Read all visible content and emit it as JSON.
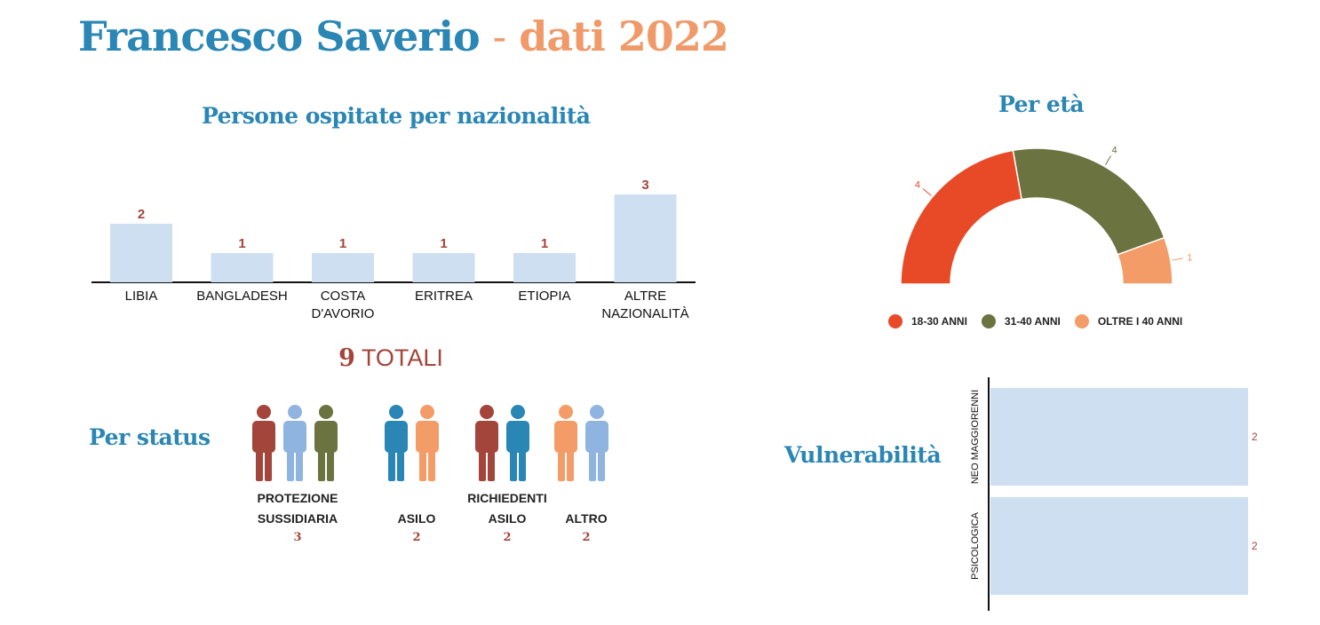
{
  "title": {
    "name": "Francesco Saverio",
    "separator": "-",
    "year_label": "dati 2022"
  },
  "nationality": {
    "heading": "Persone ospitate per nazionalità",
    "total_number": "9",
    "total_label": "TOTALI"
  },
  "age": {
    "heading": "Per età",
    "legend": [
      {
        "label": "18-30 ANNI",
        "color": "#e84a27"
      },
      {
        "label": "31-40 ANNI",
        "color": "#6b7340"
      },
      {
        "label": "OLTRE I 40 ANNI",
        "color": "#f39c68"
      }
    ]
  },
  "status": {
    "heading": "Per status",
    "groups": [
      {
        "label_line1": "PROTEZIONE",
        "label_line2": "SUSSIDIARIA",
        "count": "3",
        "figure_colors": [
          "#a3453a",
          "#8fb4e0",
          "#6b7340"
        ]
      },
      {
        "label_line1": "",
        "label_line2": "ASILO",
        "count": "2",
        "figure_colors": [
          "#2a86b4",
          "#f39c68"
        ]
      },
      {
        "label_line1": "RICHIEDENTI",
        "label_line2": "ASILO",
        "count": "2",
        "figure_colors": [
          "#a3453a",
          "#2a86b4"
        ]
      },
      {
        "label_line1": "",
        "label_line2": "ALTRO",
        "count": "2",
        "figure_colors": [
          "#f39c68",
          "#8fb4e0"
        ]
      }
    ]
  },
  "vulnerability": {
    "heading": "Vulnerabilità"
  },
  "chart_data": [
    {
      "type": "bar",
      "title": "Persone ospitate per nazionalità",
      "categories": [
        "LIBIA",
        "BANGLADESH",
        "COSTA D'AVORIO",
        "ERITREA",
        "ETIOPIA",
        "ALTRE NAZIONALITÀ"
      ],
      "category_lines": [
        [
          "LIBIA"
        ],
        [
          "BANGLADESH"
        ],
        [
          "COSTA",
          "D'AVORIO"
        ],
        [
          "ERITREA"
        ],
        [
          "ETIOPIA"
        ],
        [
          "ALTRE",
          "NAZIONALITÀ"
        ]
      ],
      "values": [
        2,
        1,
        1,
        1,
        1,
        3
      ],
      "ylim": [
        0,
        3
      ],
      "bar_color": "#cfdff2",
      "label_color": "#a3453a"
    },
    {
      "type": "pie",
      "variant": "half-donut",
      "title": "Per età",
      "categories": [
        "18-30 ANNI",
        "31-40 ANNI",
        "OLTRE I 40 ANNI"
      ],
      "values": [
        4,
        4,
        1
      ],
      "colors": [
        "#e84a27",
        "#6b7340",
        "#f39c68"
      ],
      "legend": "bottom"
    },
    {
      "type": "bar",
      "orientation": "horizontal",
      "title": "Vulnerabilità",
      "categories": [
        "NEO MAGGIORENNI",
        "PSICOLOGICA"
      ],
      "values": [
        2,
        2
      ],
      "xlim": [
        0,
        2
      ],
      "bar_color": "#cfdff2",
      "label_color": "#a3453a"
    }
  ]
}
